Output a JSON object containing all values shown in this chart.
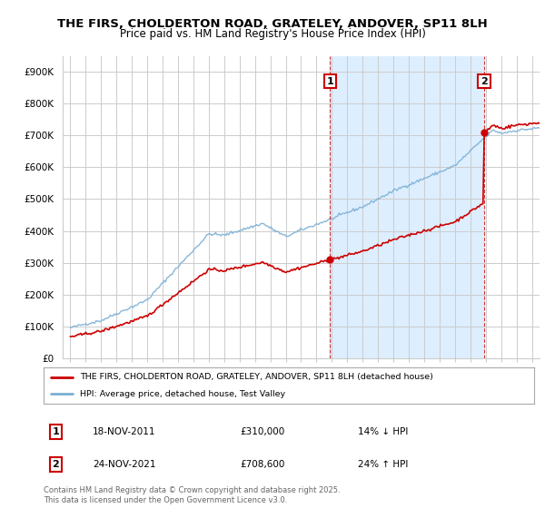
{
  "title_line1": "THE FIRS, CHOLDERTON ROAD, GRATELEY, ANDOVER, SP11 8LH",
  "title_line2": "Price paid vs. HM Land Registry's House Price Index (HPI)",
  "legend_label_red": "THE FIRS, CHOLDERTON ROAD, GRATELEY, ANDOVER, SP11 8LH (detached house)",
  "legend_label_blue": "HPI: Average price, detached house, Test Valley",
  "footnote": "Contains HM Land Registry data © Crown copyright and database right 2025.\nThis data is licensed under the Open Government Licence v3.0.",
  "sale1_date": "18-NOV-2011",
  "sale1_price": "£310,000",
  "sale1_hpi": "14% ↓ HPI",
  "sale1_year": 2011.88,
  "sale1_value": 310000,
  "sale2_date": "24-NOV-2021",
  "sale2_price": "£708,600",
  "sale2_hpi": "24% ↑ HPI",
  "sale2_year": 2021.9,
  "sale2_value": 708600,
  "ylim_min": 0,
  "ylim_max": 950000,
  "yticks": [
    0,
    100000,
    200000,
    300000,
    400000,
    500000,
    600000,
    700000,
    800000,
    900000
  ],
  "ytick_labels": [
    "£0",
    "£100K",
    "£200K",
    "£300K",
    "£400K",
    "£500K",
    "£600K",
    "£700K",
    "£800K",
    "£900K"
  ],
  "xlim_min": 1994.5,
  "xlim_max": 2025.5,
  "xticks": [
    1995,
    1996,
    1997,
    1998,
    1999,
    2000,
    2001,
    2002,
    2003,
    2004,
    2005,
    2006,
    2007,
    2008,
    2009,
    2010,
    2011,
    2012,
    2013,
    2014,
    2015,
    2016,
    2017,
    2018,
    2019,
    2020,
    2021,
    2022,
    2023,
    2024,
    2025
  ],
  "plot_bg_color": "#ffffff",
  "fig_bg_color": "#ffffff",
  "shade_color": "#ddeeff",
  "red_color": "#cc0000",
  "blue_color": "#7bafd4",
  "grid_color": "#cccccc"
}
